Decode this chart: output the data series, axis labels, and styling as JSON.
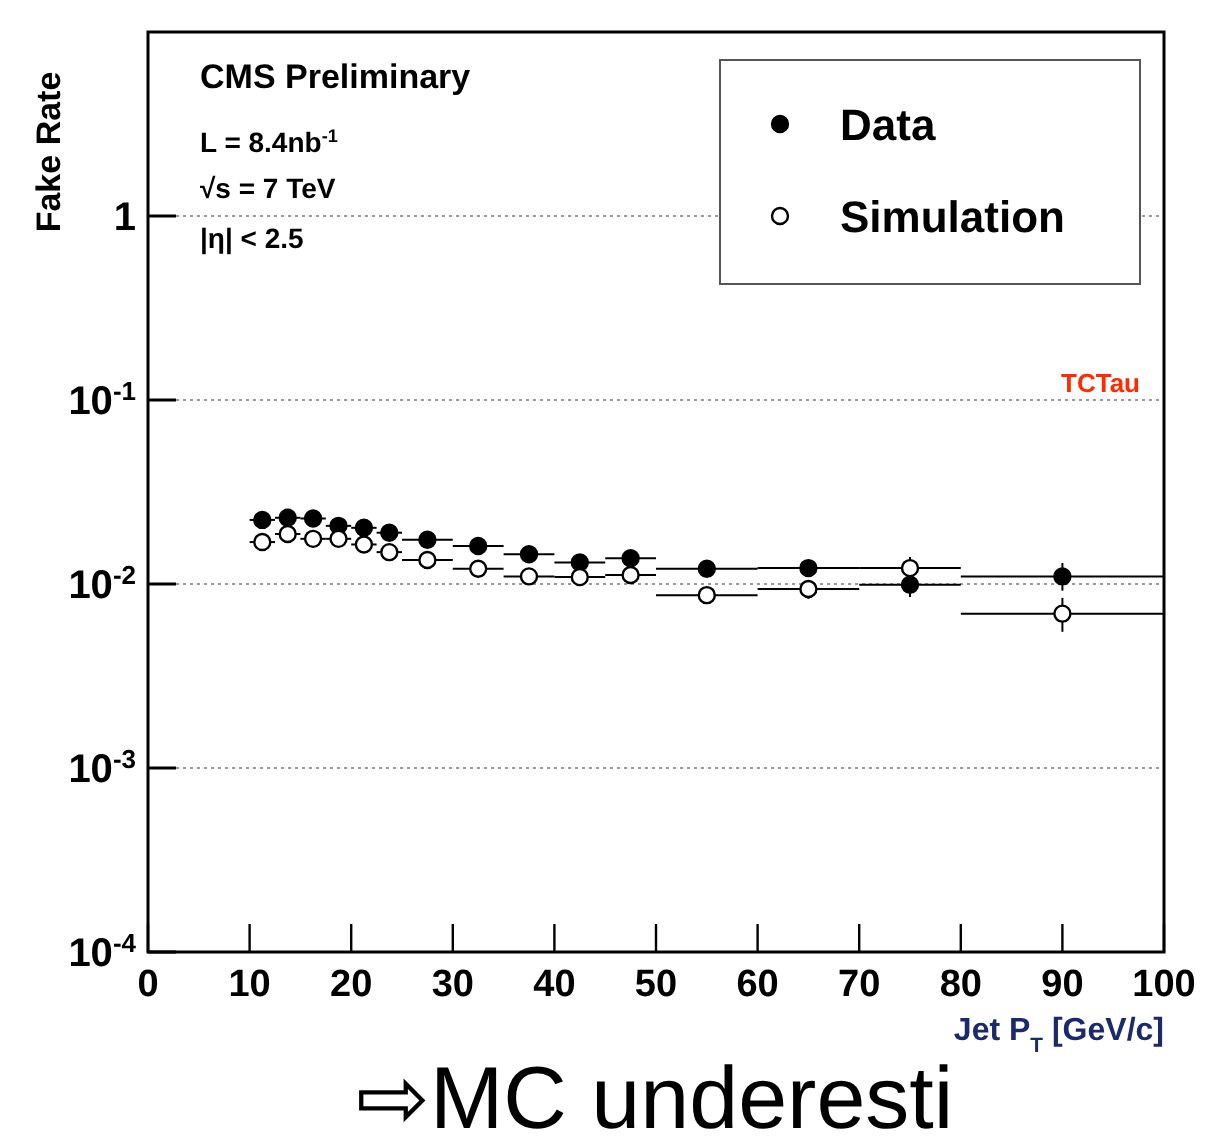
{
  "chart_data": {
    "type": "scatter",
    "ylabel": "Fake Rate",
    "xlabel": "Jet P$_{T}$ [GeV/c]",
    "annotations": [
      "CMS Preliminary",
      "L = 8.4nb$^{-1}$",
      "√s = 7 TeV",
      "|η| < 2.5",
      "TCTau",
      "⇨MC underesti"
    ],
    "x": [
      11.25,
      13.75,
      16.25,
      18.75,
      21.25,
      23.75,
      27.5,
      32.5,
      37.5,
      42.5,
      47.5,
      55,
      65,
      75,
      90
    ],
    "series": [
      {
        "name": "Data",
        "color": "#000000",
        "values": [
          0.0223,
          0.0229,
          0.0227,
          0.0207,
          0.0202,
          0.019,
          0.0174,
          0.0161,
          0.0145,
          0.0131,
          0.0138,
          0.0121,
          0.0122,
          0.0099,
          0.011
        ],
        "xerrors": [
          1.25,
          1.25,
          1.25,
          1.25,
          1.25,
          1.25,
          2.5,
          2.5,
          2.5,
          2.5,
          2.5,
          5,
          5,
          5,
          10
        ],
        "errors": [
          null,
          null,
          null,
          null,
          null,
          null,
          null,
          null,
          null,
          null,
          null,
          null,
          null,
          [
            0.0085,
            0.011
          ],
          [
            0.0092,
            0.013
          ]
        ]
      },
      {
        "name": "Simulation",
        "color": "#000000",
        "values": [
          0.0169,
          0.0187,
          0.0176,
          0.0176,
          0.0164,
          0.0149,
          0.0135,
          0.0121,
          0.011,
          0.0109,
          0.0112,
          0.0087,
          0.0094,
          0.0122,
          0.0069
        ],
        "xerrors": [
          1.25,
          1.25,
          1.25,
          1.25,
          1.25,
          1.25,
          2.5,
          2.5,
          2.5,
          2.5,
          2.5,
          5,
          5,
          5,
          10
        ],
        "errors": [
          null,
          null,
          null,
          null,
          null,
          null,
          null,
          null,
          null,
          null,
          null,
          null,
          [
            0.0083,
            0.0099
          ],
          [
            0.0106,
            0.014
          ],
          [
            0.0055,
            0.0084
          ]
        ]
      }
    ],
    "xlim": [
      0,
      100
    ],
    "xticks": [
      0,
      10,
      20,
      30,
      40,
      50,
      60,
      70,
      80,
      90,
      100
    ],
    "ylim": [
      0.0001,
      10
    ],
    "yticks": [
      {
        "value": 0.0001,
        "label": "10$^{-4}$"
      },
      {
        "value": 0.001,
        "label": "10$^{-3}$"
      },
      {
        "value": 0.01,
        "label": "10$^{-2}$"
      },
      {
        "value": 0.1,
        "label": "10$^{-1}$"
      },
      1
    ],
    "log": true,
    "grid": "y",
    "legend": "top right",
    "marker": "circle"
  }
}
